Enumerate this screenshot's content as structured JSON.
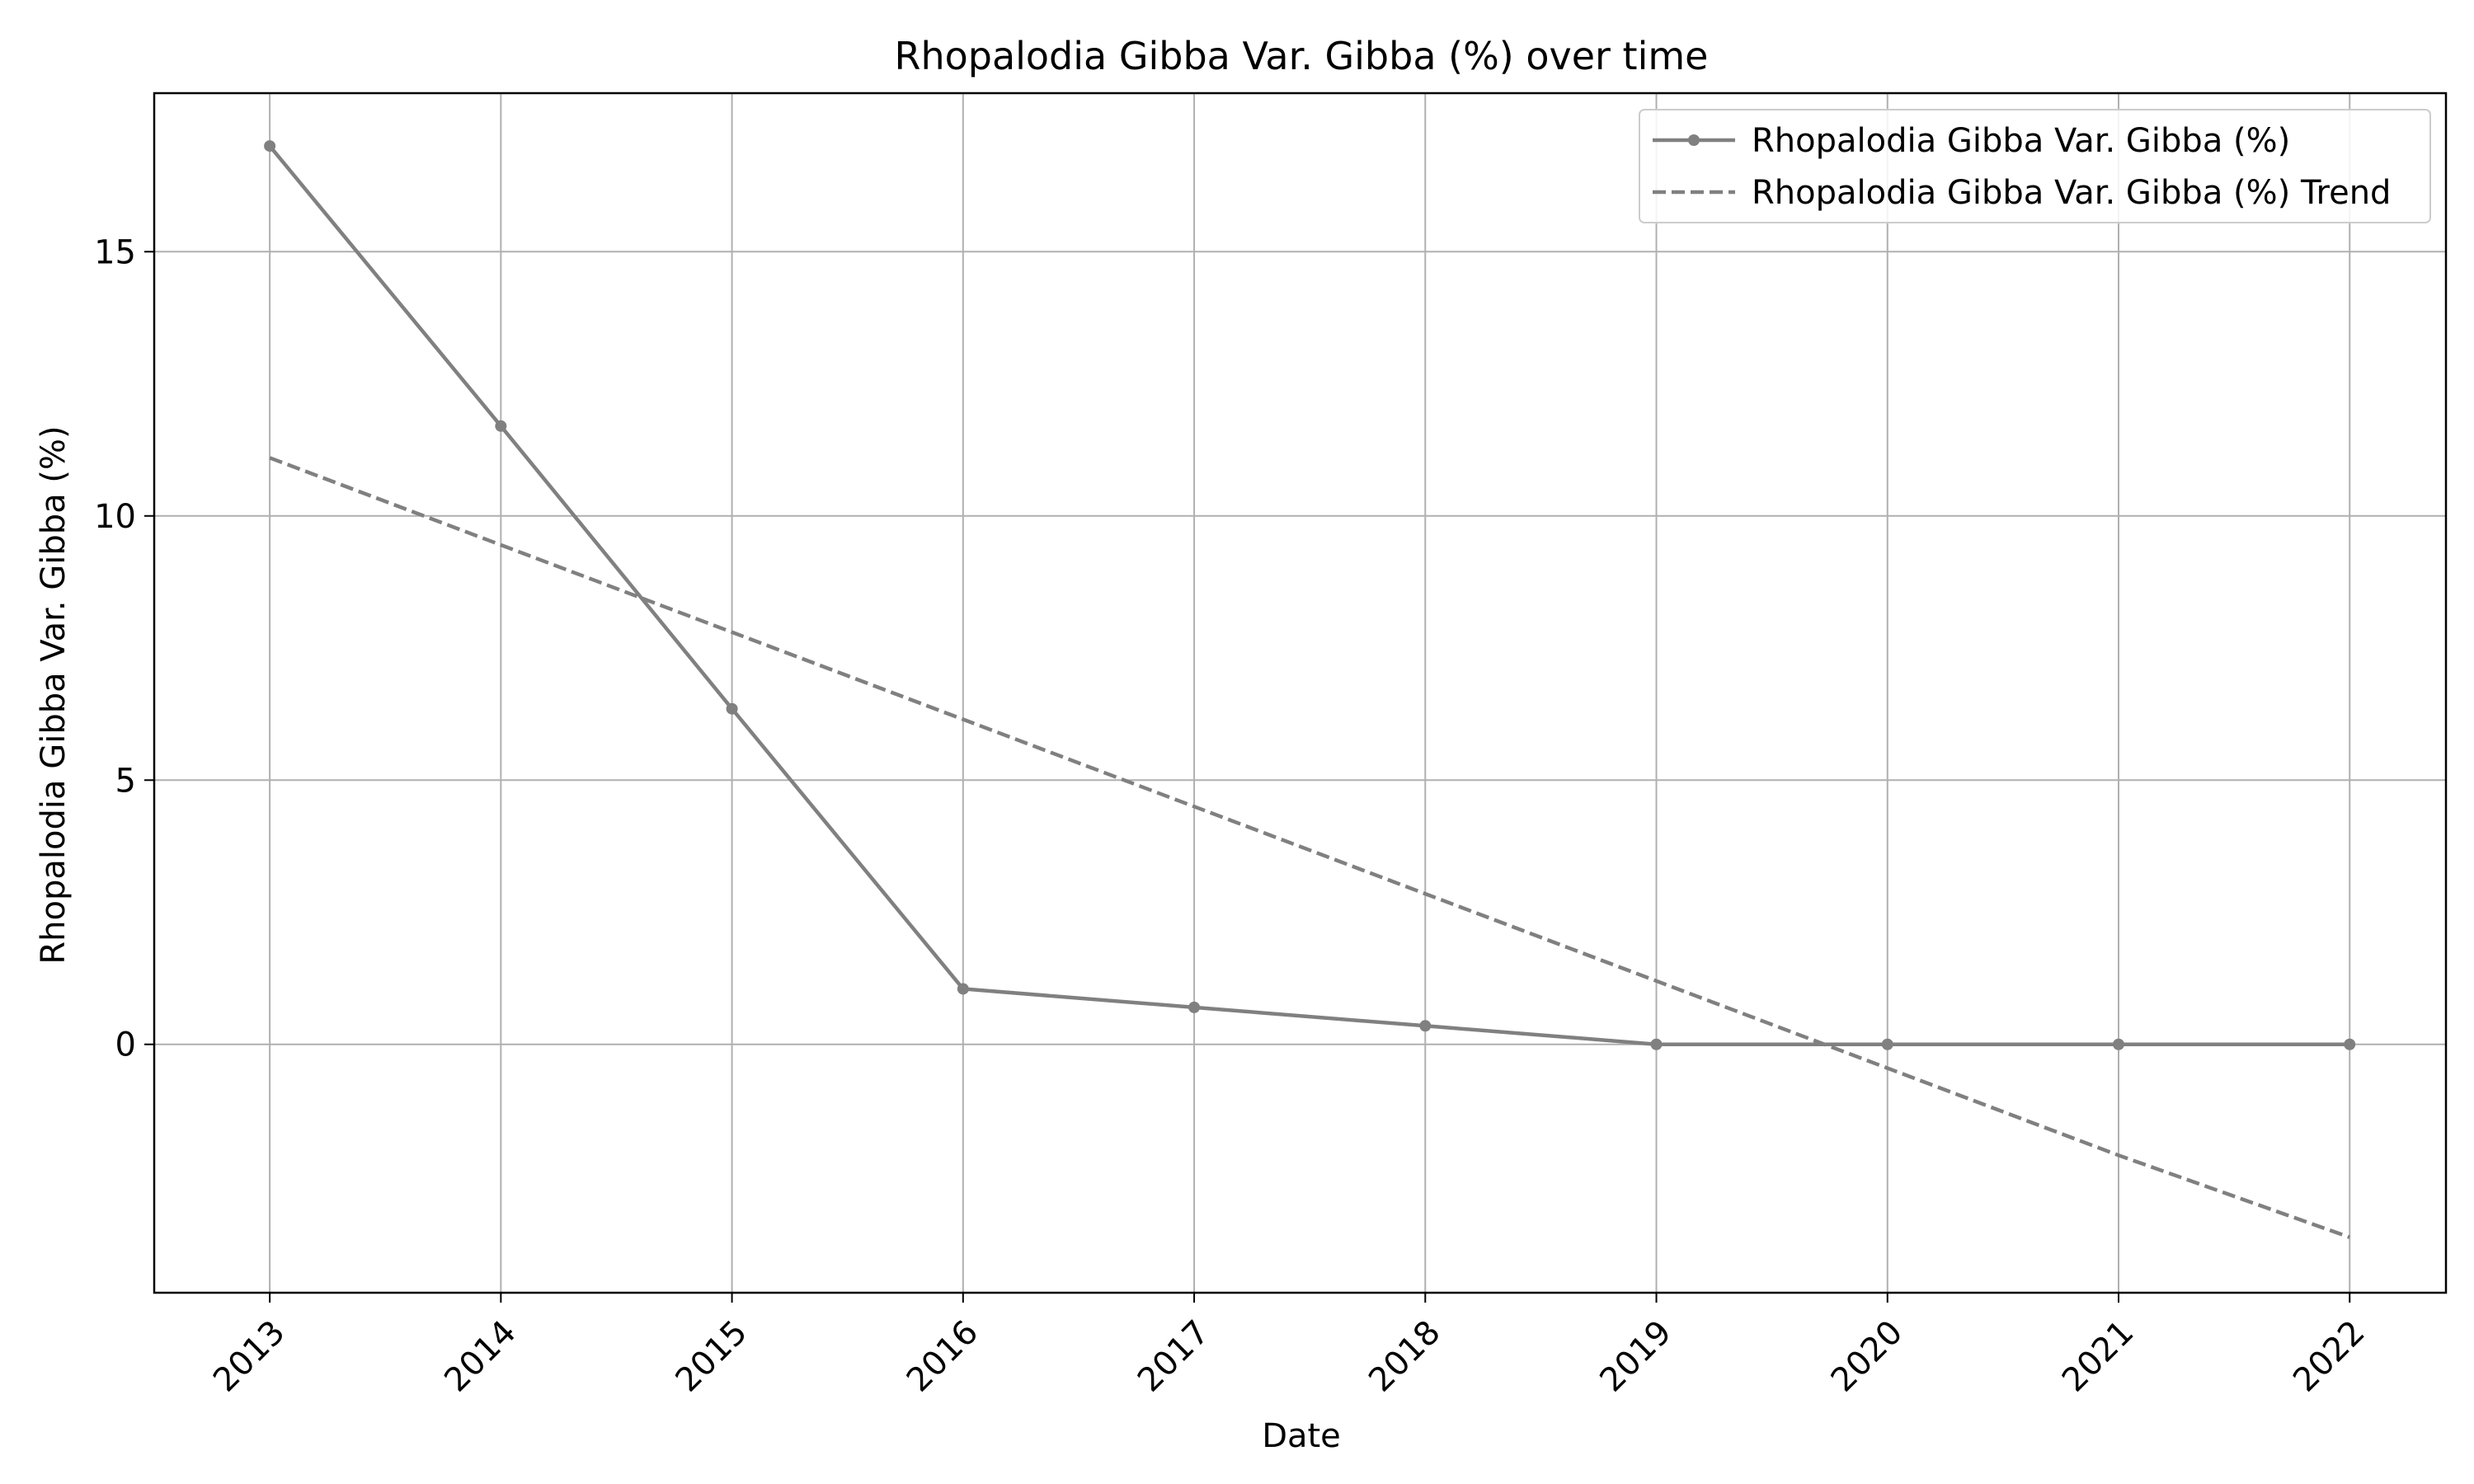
{
  "chart_data": {
    "type": "line",
    "title": "Rhopalodia Gibba Var. Gibba (%) over time",
    "xlabel": "Date",
    "ylabel": "Rhopalodia Gibba Var. Gibba (%)",
    "x": [
      "2013",
      "2014",
      "2015",
      "2016",
      "2017",
      "2018",
      "2019",
      "2020",
      "2021",
      "2022"
    ],
    "xlim": [
      "2012-07",
      "2022-06"
    ],
    "ylim": [
      -4.7,
      18.0
    ],
    "yticks": [
      0,
      5,
      10,
      15
    ],
    "grid": true,
    "legend_position": "top-right",
    "series": [
      {
        "name": "Rhopalodia Gibba Var. Gibba (%)",
        "style": "solid-with-markers",
        "color": "#808080",
        "values": [
          17.0,
          11.7,
          6.35,
          1.05,
          0.7,
          0.35,
          0.0,
          0.0,
          0.0,
          0.0
        ]
      },
      {
        "name": "Rhopalodia Gibba Var. Gibba (%) Trend",
        "style": "dashed",
        "color": "#808080",
        "values": [
          11.1,
          9.45,
          7.8,
          6.15,
          4.5,
          2.85,
          1.2,
          -0.45,
          -2.1,
          -3.65
        ]
      }
    ]
  }
}
